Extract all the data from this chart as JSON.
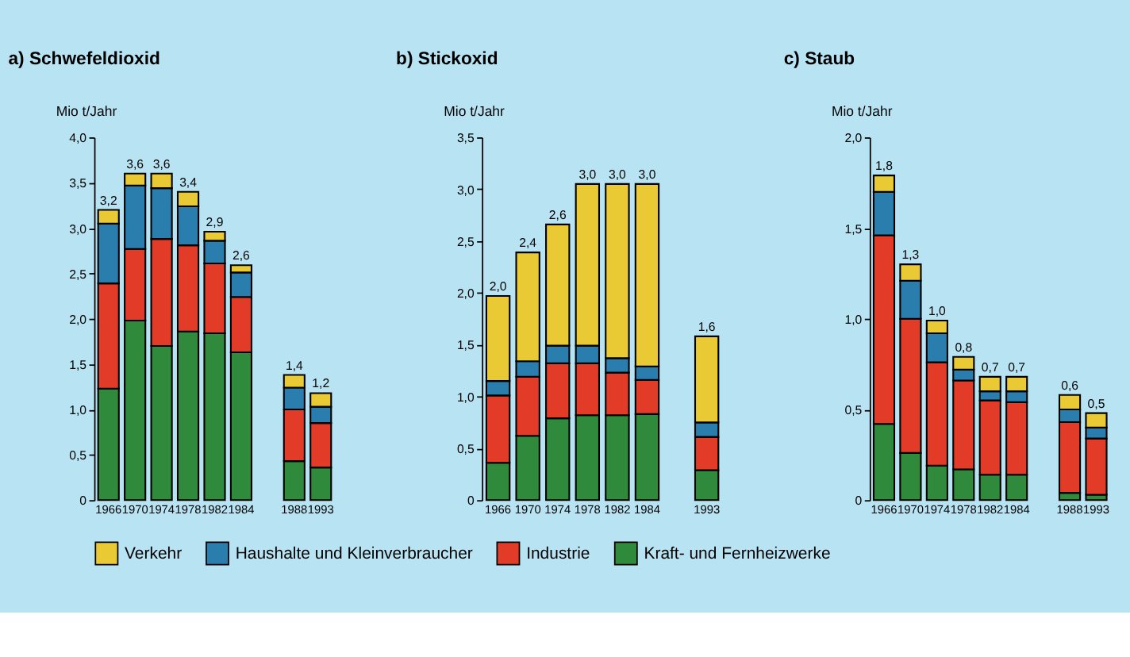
{
  "chart_data": [
    {
      "type": "bar",
      "stacked": true,
      "title": "a) Schwefeldioxid",
      "ylabel": "Mio t/Jahr",
      "legend": "bottom",
      "grid": false,
      "categories": [
        "1966",
        "1970",
        "1974",
        "1978",
        "1982",
        "1984",
        null,
        "1988",
        "1993"
      ],
      "ylim": [
        0,
        4
      ],
      "yticks": [
        0,
        {
          "value": 0.5,
          "label": "0,5"
        },
        {
          "value": 1,
          "label": "1,0"
        },
        {
          "value": 1.5,
          "label": "1,5"
        },
        {
          "value": 2,
          "label": "2,0"
        },
        {
          "value": 2.5,
          "label": "2,5"
        },
        {
          "value": 3,
          "label": "3,0"
        },
        {
          "value": 3.5,
          "label": "3,5"
        },
        {
          "value": 4,
          "label": "4,0"
        }
      ],
      "series": [
        {
          "name": "Kraft- und Fernheizwerke",
          "color": "#2f8a3c",
          "values": [
            1.23,
            1.98,
            1.7,
            1.86,
            1.84,
            1.63,
            null,
            0.43,
            0.36
          ]
        },
        {
          "name": "Industrie",
          "color": "#e23b27",
          "values": [
            1.16,
            0.79,
            1.18,
            0.95,
            0.77,
            0.61,
            null,
            0.57,
            0.49
          ]
        },
        {
          "name": "Haushalte und Kleinverbraucher",
          "color": "#2a7eae",
          "values": [
            0.66,
            0.7,
            0.56,
            0.43,
            0.25,
            0.27,
            null,
            0.24,
            0.18
          ]
        },
        {
          "name": "Verkehr",
          "color": "#e9c934",
          "values": [
            0.15,
            0.13,
            0.16,
            0.16,
            0.1,
            0.08,
            null,
            0.14,
            0.15
          ]
        }
      ],
      "totals": [
        "3,2",
        "3,6",
        "3,6",
        "3,4",
        "2,9",
        "2,6",
        null,
        "1,4",
        "1,2"
      ]
    },
    {
      "type": "bar",
      "stacked": true,
      "title": "b) Stickoxid",
      "ylabel": "Mio t/Jahr",
      "legend": "bottom",
      "grid": false,
      "categories": [
        "1966",
        "1970",
        "1974",
        "1978",
        "1982",
        "1984",
        null,
        "1993"
      ],
      "ylim": [
        0,
        3.5
      ],
      "yticks": [
        0,
        {
          "value": 0.5,
          "label": "0,5"
        },
        {
          "value": 1,
          "label": "1,0"
        },
        {
          "value": 1.5,
          "label": "1,5"
        },
        {
          "value": 2,
          "label": "2,0"
        },
        {
          "value": 2.5,
          "label": "2,5"
        },
        {
          "value": 3,
          "label": "3,0"
        },
        {
          "value": 3.5,
          "label": "3,5"
        }
      ],
      "series": [
        {
          "name": "Kraft- und Fernheizwerke",
          "color": "#2f8a3c",
          "values": [
            0.36,
            0.62,
            0.79,
            0.82,
            0.82,
            0.83,
            null,
            0.29
          ]
        },
        {
          "name": "Industrie",
          "color": "#e23b27",
          "values": [
            0.65,
            0.57,
            0.53,
            0.5,
            0.41,
            0.33,
            null,
            0.32
          ]
        },
        {
          "name": "Haushalte und Kleinverbraucher",
          "color": "#2a7eae",
          "values": [
            0.14,
            0.15,
            0.17,
            0.17,
            0.14,
            0.13,
            null,
            0.14
          ]
        },
        {
          "name": "Verkehr",
          "color": "#e9c934",
          "values": [
            0.82,
            1.05,
            1.17,
            1.56,
            1.68,
            1.76,
            null,
            0.83
          ]
        }
      ],
      "totals": [
        "2,0",
        "2,4",
        "2,6",
        "3,0",
        "3,0",
        "3,0",
        null,
        "1,6"
      ]
    },
    {
      "type": "bar",
      "stacked": true,
      "title": "c) Staub",
      "ylabel": "Mio t/Jahr",
      "legend": "bottom",
      "grid": false,
      "categories": [
        "1966",
        "1970",
        "1974",
        "1978",
        "1982",
        "1984",
        null,
        "1988",
        "1993"
      ],
      "ylim": [
        0,
        2
      ],
      "yticks": [
        0,
        {
          "value": 0.5,
          "label": "0,5"
        },
        {
          "value": 1,
          "label": "1,0"
        },
        {
          "value": 1.5,
          "label": "1,5"
        },
        {
          "value": 2,
          "label": "2,0"
        }
      ],
      "series": [
        {
          "name": "Kraft- und Fernheizwerke",
          "color": "#2f8a3c",
          "values": [
            0.42,
            0.26,
            0.19,
            0.17,
            0.14,
            0.14,
            null,
            0.04,
            0.03
          ]
        },
        {
          "name": "Industrie",
          "color": "#e23b27",
          "values": [
            1.04,
            0.74,
            0.57,
            0.49,
            0.41,
            0.4,
            null,
            0.39,
            0.31
          ]
        },
        {
          "name": "Haushalte und Kleinverbraucher",
          "color": "#2a7eae",
          "values": [
            0.24,
            0.21,
            0.16,
            0.06,
            0.05,
            0.06,
            null,
            0.07,
            0.06
          ]
        },
        {
          "name": "Verkehr",
          "color": "#e9c934",
          "values": [
            0.09,
            0.09,
            0.07,
            0.07,
            0.08,
            0.08,
            null,
            0.08,
            0.08
          ]
        }
      ],
      "totals": [
        "1,8",
        "1,3",
        "1,0",
        "0,8",
        "0,7",
        "0,7",
        null,
        "0,6",
        "0,5"
      ]
    }
  ]
}
